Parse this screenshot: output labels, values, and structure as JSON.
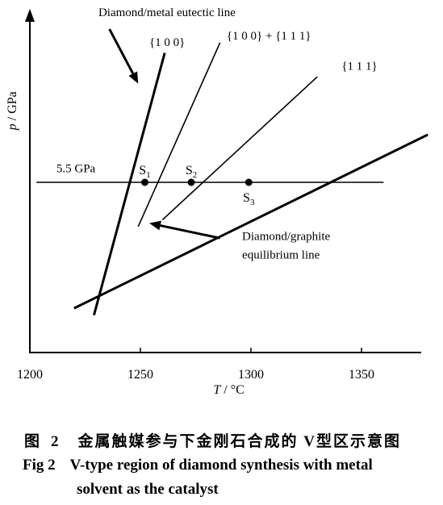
{
  "chart_data": {
    "type": "line",
    "title": "",
    "xlabel": "T / °C",
    "ylabel": "p / GPa",
    "xlim": [
      1200,
      1380
    ],
    "ylim": [
      3.0,
      8.0
    ],
    "x_ticks": [
      1200,
      1250,
      1300,
      1350
    ],
    "grid": false,
    "series": [
      {
        "name": "Diamond/metal eutectic line",
        "points": [
          [
            1229,
            3.55
          ],
          [
            1261,
            7.4
          ]
        ],
        "width": 3
      },
      {
        "name": "Diamond/graphite equilibrium line",
        "points": [
          [
            1220,
            3.65
          ],
          [
            1380,
            6.2
          ]
        ],
        "width": 3
      },
      {
        "name": "{1 0 0}",
        "points": [
          [
            1249,
            4.85
          ],
          [
            1286,
            7.55
          ]
        ],
        "width": 1.6
      },
      {
        "name": "{1 0 0} + {1 1 1}",
        "points": [
          [
            1260,
            4.95
          ],
          [
            1330,
            7.05
          ]
        ],
        "width": 1.6
      },
      {
        "name": "5.5 GPa",
        "points": [
          [
            1203,
            5.5
          ],
          [
            1360,
            5.5
          ]
        ],
        "width": 1.6
      }
    ],
    "points": [
      {
        "label": "S1",
        "sub": "1",
        "x": 1252,
        "y": 5.5,
        "label_pos": "above"
      },
      {
        "label": "S2",
        "sub": "2",
        "x": 1273,
        "y": 5.5,
        "label_pos": "above"
      },
      {
        "label": "S3",
        "sub": "3",
        "x": 1299,
        "y": 5.5,
        "label_pos": "below"
      }
    ],
    "annotations": [
      {
        "text": "Diamond/metal eutectic line",
        "x": 1231,
        "y": 7.94
      },
      {
        "text": "{1 0 0}",
        "x": 1254,
        "y": 7.5
      },
      {
        "text": "{1 0 0}  + {1 1 1}",
        "x": 1289,
        "y": 7.6
      },
      {
        "text": "{1 1 1}",
        "x": 1341,
        "y": 7.15
      },
      {
        "text": "5.5 GPa",
        "x": 1212,
        "y": 5.65
      },
      {
        "text": "Diamond/graphite",
        "x": 1296,
        "y": 4.65
      },
      {
        "text": "equilibrium line",
        "x": 1296,
        "y": 4.38
      }
    ],
    "arrows": [
      {
        "from": [
          1236,
          7.75
        ],
        "to": [
          1249,
          6.95
        ]
      },
      {
        "from": [
          1286,
          4.68
        ],
        "to": [
          1254,
          4.9
        ]
      }
    ]
  },
  "caption": {
    "cn_label": "图",
    "cn_num": "2",
    "cn_text": "金属触媒参与下金刚石合成的 V型区示意图",
    "en_label": "Fig 2",
    "en_line1": "V-type region of diamond synthesis with metal",
    "en_line2": "solvent as the catalyst"
  },
  "colors": {
    "ink": "#000000",
    "background": "#ffffff"
  }
}
